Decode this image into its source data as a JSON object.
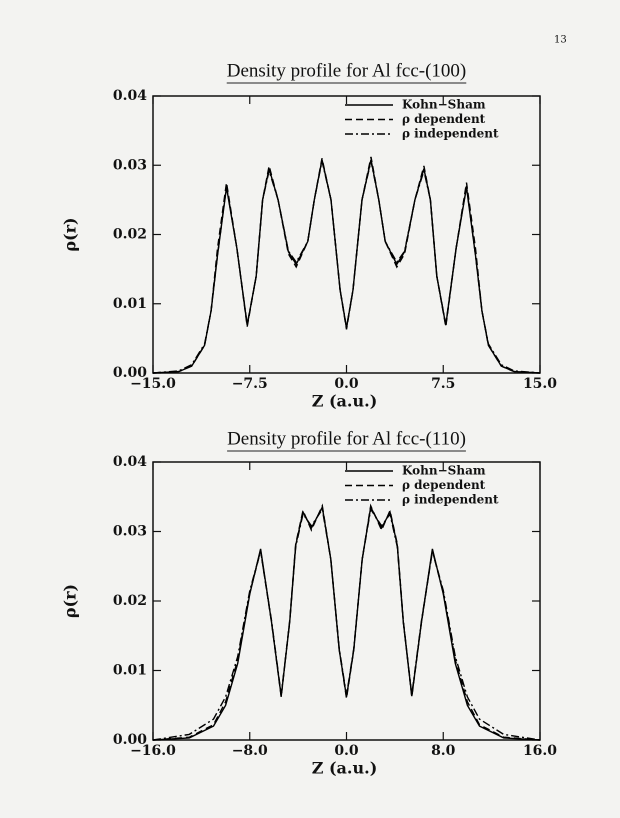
{
  "page_number": "13",
  "chart_data": [
    {
      "type": "line",
      "title": "Density profile for Al fcc-(100)",
      "x_label": "Z (a.u.)",
      "y_label": "ρ(r)",
      "xlim": [
        -15,
        15
      ],
      "ylim": [
        0,
        0.04
      ],
      "xticks": [
        {
          "value": -15,
          "label": "−15.0"
        },
        {
          "value": -7.5,
          "label": "−7.5"
        },
        {
          "value": 0,
          "label": "0.0"
        },
        {
          "value": 7.5,
          "label": "7.5"
        },
        {
          "value": 15,
          "label": "15.0"
        }
      ],
      "yticks": [
        {
          "value": 0,
          "label": "0.00"
        },
        {
          "value": 0.01,
          "label": "0.01"
        },
        {
          "value": 0.02,
          "label": "0.02"
        },
        {
          "value": 0.03,
          "label": "0.03"
        },
        {
          "value": 0.04,
          "label": "0.04"
        }
      ],
      "legend": "upper right",
      "x": [
        -15,
        -13,
        -12,
        -11,
        -10.5,
        -10,
        -9.3,
        -8.5,
        -7.7,
        -7,
        -6.5,
        -6,
        -5.3,
        -4.5,
        -3.9,
        -3,
        -2.5,
        -1.9,
        -1.2,
        -0.5,
        0,
        0.5,
        1.2,
        1.9,
        2.5,
        3,
        3.9,
        4.5,
        5.3,
        6,
        6.5,
        7,
        7.7,
        8.5,
        9.3,
        10,
        10.5,
        11,
        12,
        13,
        15
      ],
      "series": [
        {
          "name": "Kohn−Sham",
          "color": "#000000",
          "linestyle": "solid",
          "values": [
            0,
            0.0002,
            0.001,
            0.004,
            0.009,
            0.017,
            0.0268,
            0.018,
            0.0069,
            0.014,
            0.025,
            0.0295,
            0.025,
            0.0175,
            0.0157,
            0.019,
            0.025,
            0.0308,
            0.025,
            0.012,
            0.0065,
            0.012,
            0.025,
            0.0308,
            0.025,
            0.019,
            0.0157,
            0.0175,
            0.025,
            0.0295,
            0.025,
            0.014,
            0.0069,
            0.018,
            0.0268,
            0.017,
            0.009,
            0.004,
            0.001,
            0.0002,
            0
          ]
        },
        {
          "name": "ρ dependent",
          "color": "#000000",
          "linestyle": "dashed",
          "values": [
            0,
            0.0002,
            0.001,
            0.004,
            0.009,
            0.018,
            0.0275,
            0.018,
            0.0067,
            0.014,
            0.025,
            0.0299,
            0.025,
            0.0172,
            0.0153,
            0.019,
            0.025,
            0.031,
            0.025,
            0.012,
            0.0063,
            0.012,
            0.025,
            0.0312,
            0.025,
            0.019,
            0.0153,
            0.0172,
            0.025,
            0.0299,
            0.025,
            0.014,
            0.0067,
            0.018,
            0.0275,
            0.018,
            0.009,
            0.004,
            0.001,
            0.0002,
            0
          ]
        },
        {
          "name": "ρ independent",
          "color": "#000000",
          "linestyle": "dashdot",
          "values": [
            0,
            0.0003,
            0.0012,
            0.0042,
            0.009,
            0.017,
            0.027,
            0.018,
            0.007,
            0.014,
            0.025,
            0.0292,
            0.025,
            0.0176,
            0.016,
            0.019,
            0.025,
            0.0306,
            0.025,
            0.012,
            0.0066,
            0.012,
            0.025,
            0.0306,
            0.025,
            0.019,
            0.016,
            0.0176,
            0.025,
            0.0292,
            0.025,
            0.014,
            0.007,
            0.018,
            0.027,
            0.017,
            0.009,
            0.0042,
            0.0012,
            0.0003,
            0
          ]
        }
      ]
    },
    {
      "type": "line",
      "title": "Density profile for Al fcc-(110)",
      "x_label": "Z (a.u.)",
      "y_label": "ρ(r)",
      "xlim": [
        -16,
        16
      ],
      "ylim": [
        0,
        0.04
      ],
      "xticks": [
        {
          "value": -16,
          "label": "−16.0"
        },
        {
          "value": -8,
          "label": "−8.0"
        },
        {
          "value": 0,
          "label": "0.0"
        },
        {
          "value": 8,
          "label": "8.0"
        },
        {
          "value": 16,
          "label": "16.0"
        }
      ],
      "yticks": [
        {
          "value": 0,
          "label": "0.00"
        },
        {
          "value": 0.01,
          "label": "0.01"
        },
        {
          "value": 0.02,
          "label": "0.02"
        },
        {
          "value": 0.03,
          "label": "0.03"
        },
        {
          "value": 0.04,
          "label": "0.04"
        }
      ],
      "legend": "upper right",
      "x": [
        -16,
        -13,
        -11,
        -10,
        -9,
        -8,
        -7.1,
        -6.2,
        -5.4,
        -4.7,
        -4.2,
        -3.6,
        -2.9,
        -2,
        -1.3,
        -0.6,
        0,
        0.6,
        1.3,
        2,
        2.9,
        3.6,
        4.2,
        4.7,
        5.4,
        6.2,
        7.1,
        8,
        9,
        10,
        11,
        13,
        16
      ],
      "series": [
        {
          "name": "Kohn−Sham",
          "color": "#000000",
          "linestyle": "solid",
          "values": [
            0,
            0.0003,
            0.002,
            0.005,
            0.011,
            0.021,
            0.0275,
            0.017,
            0.0063,
            0.017,
            0.028,
            0.0328,
            0.0305,
            0.0335,
            0.026,
            0.013,
            0.0062,
            0.013,
            0.026,
            0.0335,
            0.0305,
            0.0328,
            0.028,
            0.017,
            0.0063,
            0.017,
            0.0275,
            0.021,
            0.011,
            0.005,
            0.002,
            0.0003,
            0
          ]
        },
        {
          "name": "ρ dependent",
          "color": "#000000",
          "linestyle": "dashed",
          "values": [
            0,
            0.0004,
            0.0022,
            0.0055,
            0.0115,
            0.0212,
            0.0272,
            0.017,
            0.0062,
            0.0172,
            0.0282,
            0.033,
            0.0302,
            0.0337,
            0.026,
            0.013,
            0.006,
            0.013,
            0.026,
            0.0337,
            0.0302,
            0.033,
            0.0282,
            0.0172,
            0.0062,
            0.017,
            0.0272,
            0.0212,
            0.0115,
            0.0055,
            0.0022,
            0.0004,
            0
          ]
        },
        {
          "name": "ρ independent",
          "color": "#000000",
          "linestyle": "dashdot",
          "values": [
            0,
            0.0008,
            0.003,
            0.0062,
            0.012,
            0.0215,
            0.0272,
            0.0172,
            0.0065,
            0.017,
            0.0278,
            0.0325,
            0.0308,
            0.0332,
            0.026,
            0.0132,
            0.0064,
            0.0132,
            0.026,
            0.0332,
            0.0308,
            0.0325,
            0.0278,
            0.017,
            0.0065,
            0.0172,
            0.0272,
            0.0215,
            0.012,
            0.0062,
            0.003,
            0.0008,
            0
          ]
        }
      ]
    }
  ]
}
